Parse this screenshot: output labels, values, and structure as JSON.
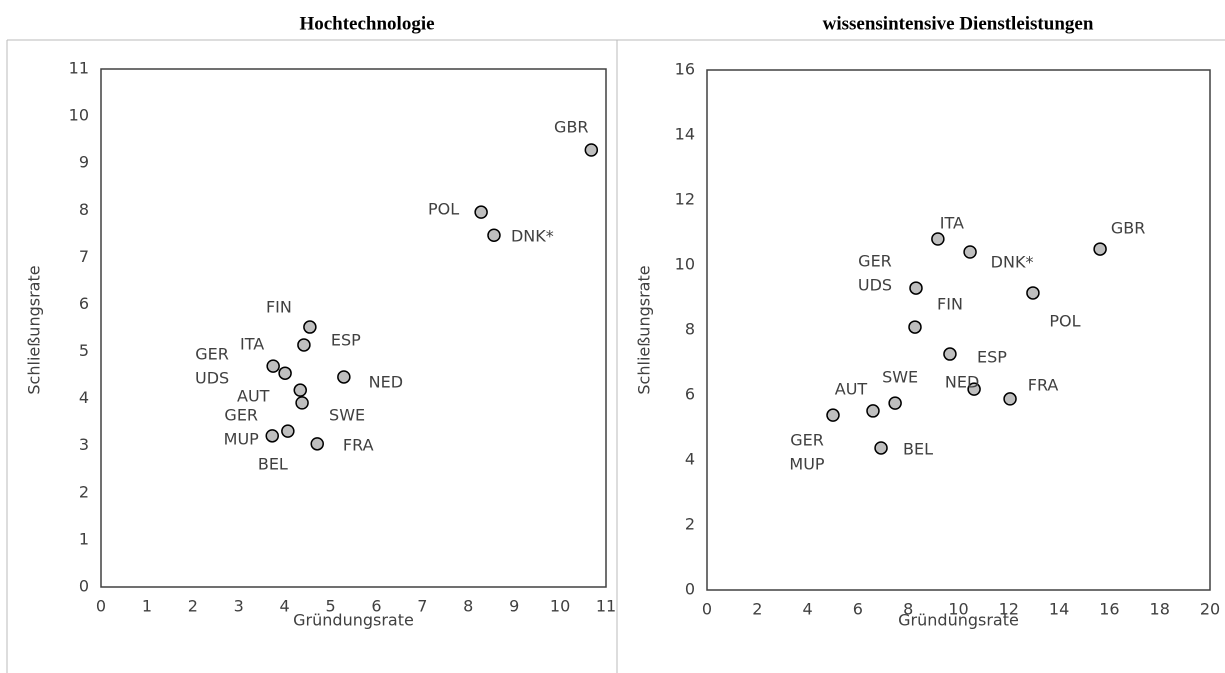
{
  "chart_data": [
    {
      "type": "scatter",
      "title": "Hochtechnologie",
      "xlabel": "Gründungsrate",
      "ylabel": "Schließungsrate",
      "color": "#bfbfbf",
      "labels": [
        [
          "GBR"
        ],
        [
          "POL"
        ],
        [
          "DNK*"
        ],
        [
          "FIN"
        ],
        [
          "ESP"
        ],
        [
          "ITA"
        ],
        [
          "GER",
          "UDS"
        ],
        [
          "NED"
        ],
        [
          "AUT"
        ],
        [
          "SWE"
        ],
        [
          "GER",
          "MUP"
        ],
        [
          "BEL"
        ],
        [
          "FRA"
        ]
      ],
      "x": [
        10.68,
        8.28,
        8.56,
        4.55,
        4.42,
        3.75,
        4.01,
        5.29,
        4.34,
        4.38,
        3.73,
        4.07,
        4.71
      ],
      "values": [
        9.28,
        7.96,
        7.47,
        5.52,
        5.14,
        4.69,
        4.54,
        4.46,
        4.18,
        3.91,
        3.21,
        3.31,
        3.04
      ],
      "xlim": [
        0,
        11
      ],
      "ylim": [
        0,
        11
      ],
      "xticks": [
        0,
        1,
        2,
        3,
        4,
        5,
        6,
        7,
        8,
        9,
        10,
        11
      ],
      "yticks": [
        0,
        1,
        2,
        3,
        4,
        5,
        6,
        7,
        8,
        9,
        10,
        11
      ]
    },
    {
      "type": "scatter",
      "title": "wissensintensive Dienstleistungen",
      "xlabel": "Gründungsrate",
      "ylabel": "Schließungsrate",
      "color": "#bfbfbf",
      "labels": [
        [
          "GBR"
        ],
        [
          "ITA"
        ],
        [
          "DNK*"
        ],
        [
          "GER",
          "UDS"
        ],
        [
          "POL"
        ],
        [
          "FIN"
        ],
        [
          "ESP"
        ],
        [
          "NED"
        ],
        [
          "FRA"
        ],
        [
          "SWE"
        ],
        [
          "AUT"
        ],
        [
          "GER",
          "MUP"
        ],
        [
          "BEL"
        ]
      ],
      "x": [
        15.63,
        9.18,
        10.46,
        8.31,
        12.96,
        8.27,
        9.66,
        10.62,
        12.05,
        7.48,
        6.6,
        5.01,
        6.92
      ],
      "values": [
        10.49,
        10.8,
        10.4,
        9.29,
        9.14,
        8.09,
        7.26,
        6.18,
        5.88,
        5.75,
        5.51,
        5.38,
        4.37
      ],
      "xlim": [
        0,
        20
      ],
      "ylim": [
        0,
        16
      ],
      "xticks": [
        0,
        2,
        4,
        6,
        8,
        10,
        12,
        14,
        16,
        18,
        20
      ],
      "yticks": [
        0,
        2,
        4,
        6,
        8,
        10,
        12,
        14,
        16
      ]
    }
  ]
}
